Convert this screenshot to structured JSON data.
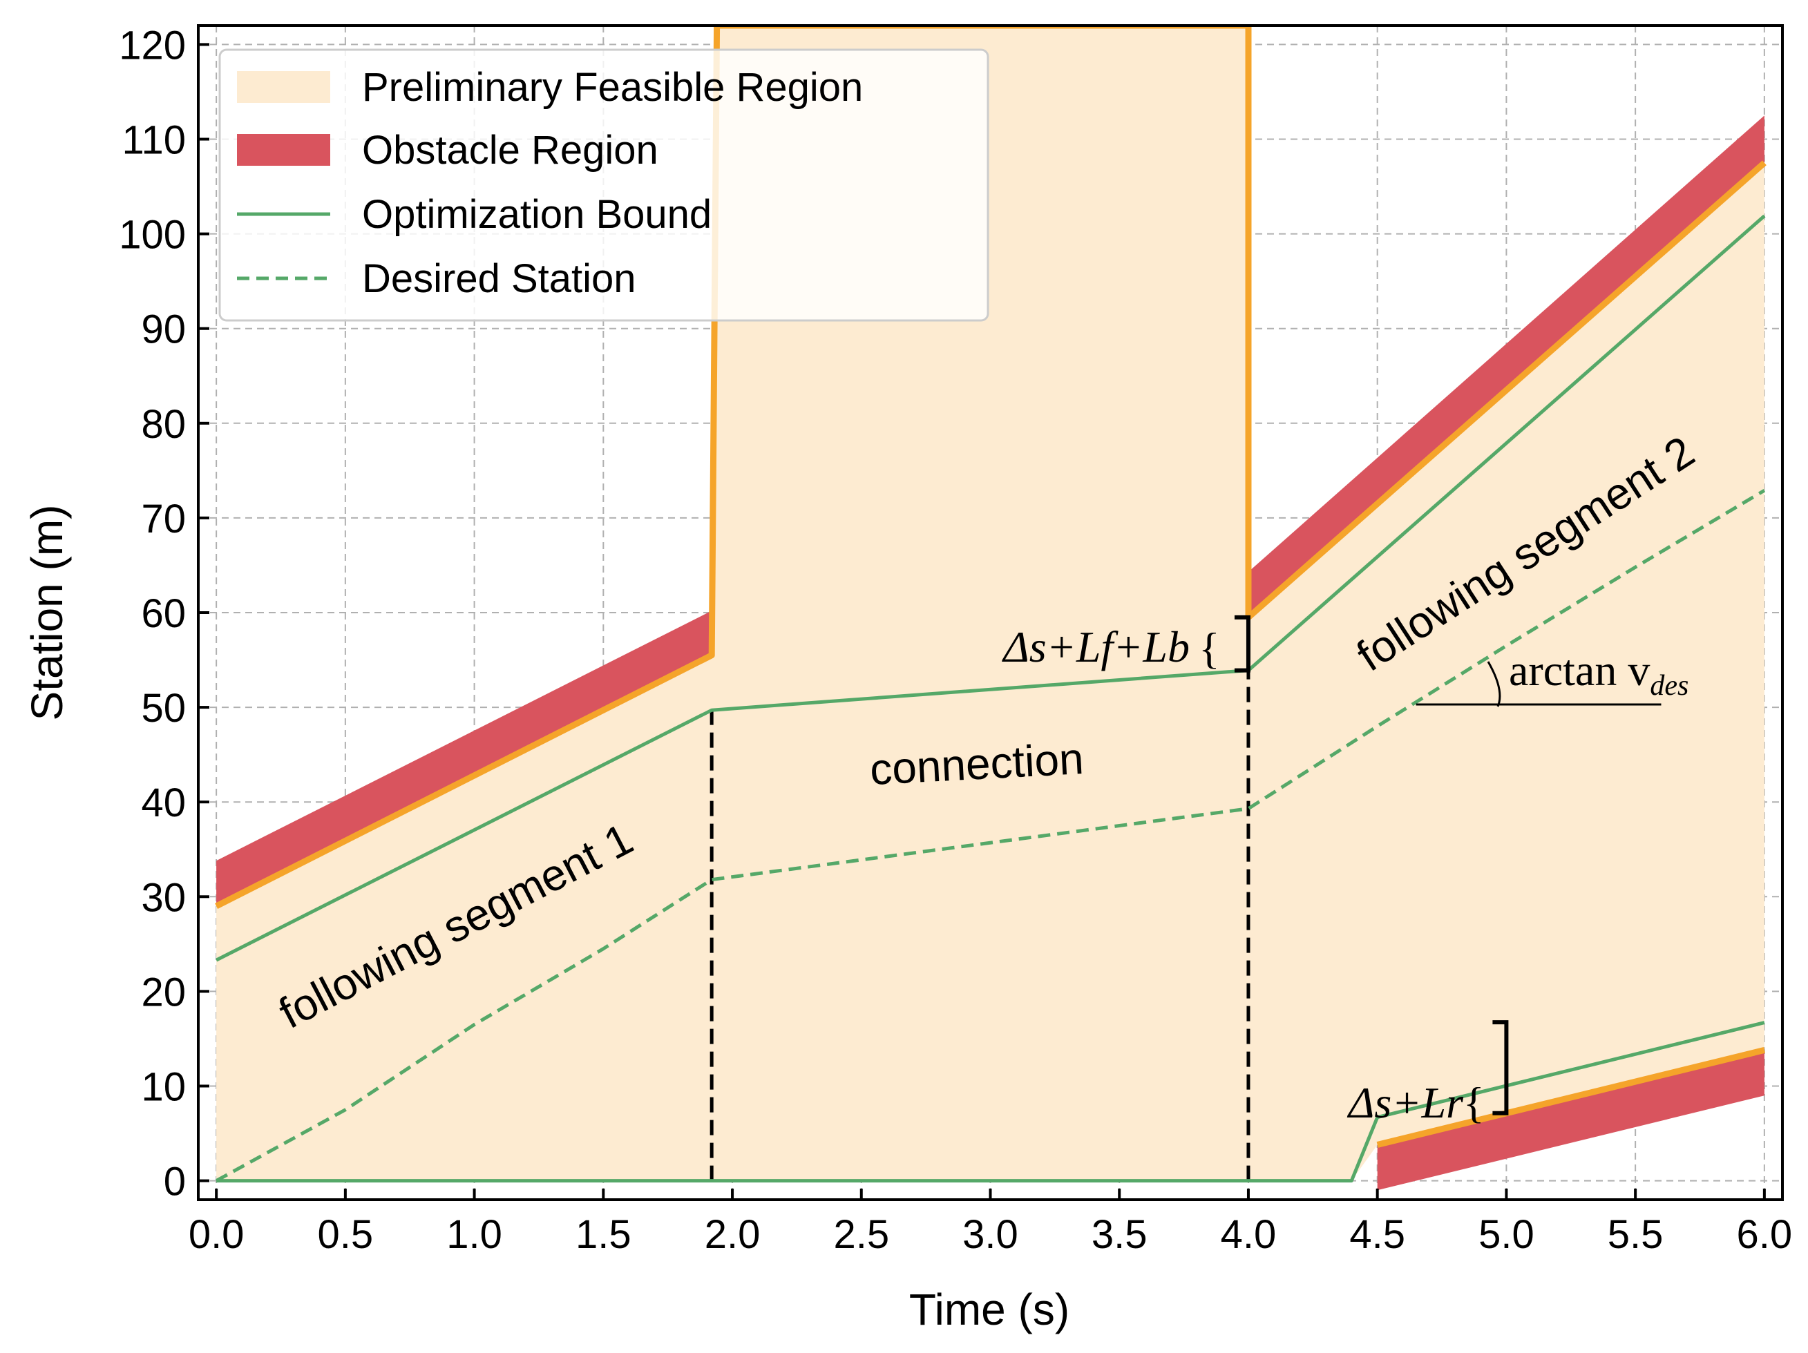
{
  "chart_data": {
    "type": "area",
    "title": "",
    "xlabel": "Time (s)",
    "ylabel": "Station (m)",
    "xlim": [
      -0.07,
      6.07
    ],
    "ylim": [
      -2,
      122
    ],
    "xticks": [
      0.0,
      0.5,
      1.0,
      1.5,
      2.0,
      2.5,
      3.0,
      3.5,
      4.0,
      4.5,
      5.0,
      5.5,
      6.0
    ],
    "xtick_labels": [
      "0.0",
      "0.5",
      "1.0",
      "1.5",
      "2.0",
      "2.5",
      "3.0",
      "3.5",
      "4.0",
      "4.5",
      "5.0",
      "5.5",
      "6.0"
    ],
    "yticks": [
      0,
      10,
      20,
      30,
      40,
      50,
      60,
      70,
      80,
      90,
      100,
      110,
      120
    ],
    "ytick_labels": [
      "0",
      "10",
      "20",
      "30",
      "40",
      "50",
      "60",
      "70",
      "80",
      "90",
      "100",
      "110",
      "120"
    ],
    "grid": true,
    "legend_position": "top-left",
    "legend": [
      {
        "label": "Preliminary Feasible Region",
        "kind": "fill",
        "color": "#fdebd1"
      },
      {
        "label": "Obstacle Region",
        "kind": "fill",
        "color": "#d9545e"
      },
      {
        "label": "Optimization Bound",
        "kind": "line",
        "color": "#55a868"
      },
      {
        "label": "Desired Station",
        "kind": "dashed",
        "color": "#55a868"
      }
    ],
    "colors": {
      "feasible_fill": "#fdebd1",
      "feasible_edge": "#f5a42a",
      "obstacle": "#d9545e",
      "bound": "#55a868",
      "guide": "#000000",
      "grid": "#b0b0b0"
    },
    "series": [
      {
        "name": "Preliminary Feasible Region upper edge",
        "x": [
          0.0,
          1.92,
          1.94,
          4.0,
          4.0,
          6.0
        ],
        "y": [
          29,
          55.5,
          122,
          122,
          59.5,
          107.5
        ]
      },
      {
        "name": "Preliminary Feasible Region lower edge",
        "x": [
          0.0,
          4.4,
          4.5,
          6.0
        ],
        "y": [
          0,
          0,
          3.8,
          13.8
        ]
      },
      {
        "name": "Obstacle Region (upper segment 1)",
        "x": [
          0.0,
          1.92
        ],
        "y_low": [
          29,
          55.5
        ],
        "y_high": [
          33.8,
          60.2
        ]
      },
      {
        "name": "Obstacle Region (upper segment 2)",
        "x": [
          4.0,
          6.0
        ],
        "y_low": [
          59.5,
          107.5
        ],
        "y_high": [
          64.3,
          112.5
        ]
      },
      {
        "name": "Obstacle Region (lower)",
        "x": [
          4.5,
          6.0
        ],
        "y_low": [
          -1.0,
          9.0
        ],
        "y_high": [
          3.8,
          13.8
        ]
      },
      {
        "name": "Optimization Bound (upper)",
        "x": [
          0.0,
          1.92,
          4.0,
          6.0
        ],
        "y": [
          23.3,
          49.7,
          53.9,
          101.9
        ]
      },
      {
        "name": "Optimization Bound (lower)",
        "x": [
          0.0,
          4.4,
          4.5,
          6.0
        ],
        "y": [
          0,
          0,
          6.7,
          16.7
        ]
      },
      {
        "name": "Desired Station",
        "x": [
          0.0,
          0.5,
          1.0,
          1.5,
          1.92,
          4.0,
          4.5,
          5.0,
          5.5,
          6.0
        ],
        "y": [
          0,
          7.5,
          16.5,
          24.5,
          31.8,
          39.3,
          48.0,
          56.5,
          64.8,
          72.9
        ]
      }
    ],
    "guides": [
      {
        "name": "segment-1-boundary",
        "x": 1.92,
        "y_from": 0,
        "y_to": 49.7
      },
      {
        "name": "segment-2-boundary",
        "x": 4.0,
        "y_from": 0,
        "y_to": 53.9
      },
      {
        "name": "arctan-reference-line",
        "x_from": 4.65,
        "x_to": 5.6,
        "y": 50.3
      }
    ],
    "annotations": {
      "segment1": "following segment 1",
      "connection": "connection",
      "segment2": "following segment 2",
      "gap_upper": "Δs+Lf+Lb",
      "gap_lower": "Δs+Lr",
      "arctan_prefix": "arctan v",
      "arctan_subscript": "des",
      "brace": "{"
    }
  }
}
